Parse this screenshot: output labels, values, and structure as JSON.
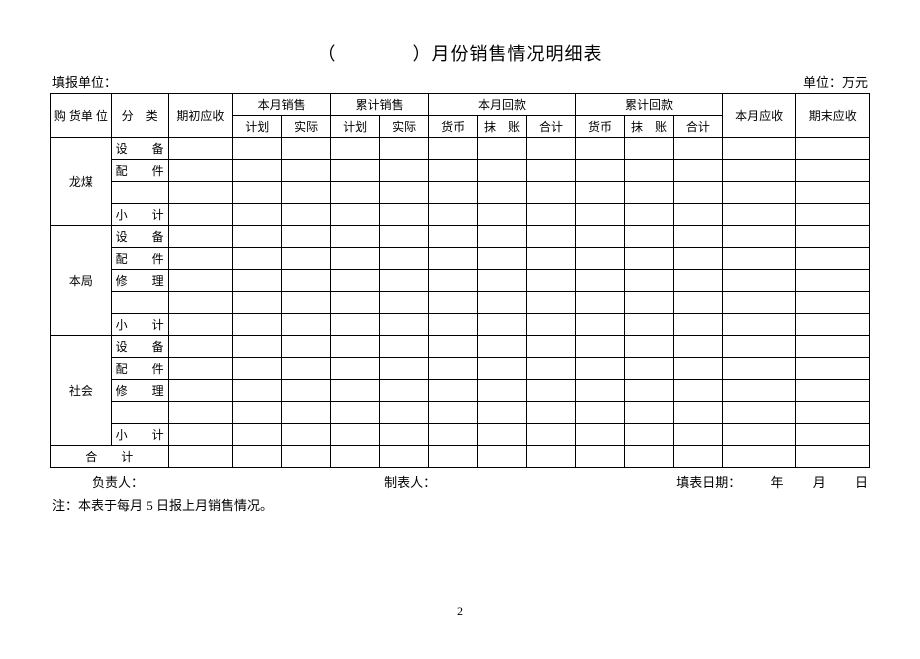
{
  "title_prefix": "（　　　　）",
  "title_main": "月份销售情况明细表",
  "meta": {
    "filler_unit_label": "填报单位：",
    "unit_label": "单位：万元"
  },
  "headers": {
    "purchaser": "购 货单 位",
    "category": "分　类",
    "begin_receivable": "期初应收",
    "month_sales": "本月销售",
    "cum_sales": "累计销售",
    "month_collect": "本月回款",
    "cum_collect": "累计回款",
    "month_receivable": "本月应收",
    "end_receivable": "期末应收",
    "plan": "计划",
    "actual": "实际",
    "currency": "货币",
    "offset": "抹　账",
    "subtotal": "合计"
  },
  "groups": [
    {
      "name": "龙煤",
      "rows": [
        "设　　备",
        "配　　件",
        "",
        "小　　计"
      ]
    },
    {
      "name": "本局",
      "rows": [
        "设　　备",
        "配　　件",
        "修　　理",
        "",
        "小　　计"
      ]
    },
    {
      "name": "社会",
      "rows": [
        "设　　备",
        "配　　件",
        "修　　理",
        "",
        "小　　计"
      ]
    }
  ],
  "total_row": "合　　计",
  "footer": {
    "responsible": "负责人：",
    "preparer": "制表人：",
    "fill_date_label": "填表日期：",
    "year": "年",
    "month": "月",
    "day": "日"
  },
  "note": "注：本表于每月 5 日报上月销售情况。",
  "page_number": "2"
}
